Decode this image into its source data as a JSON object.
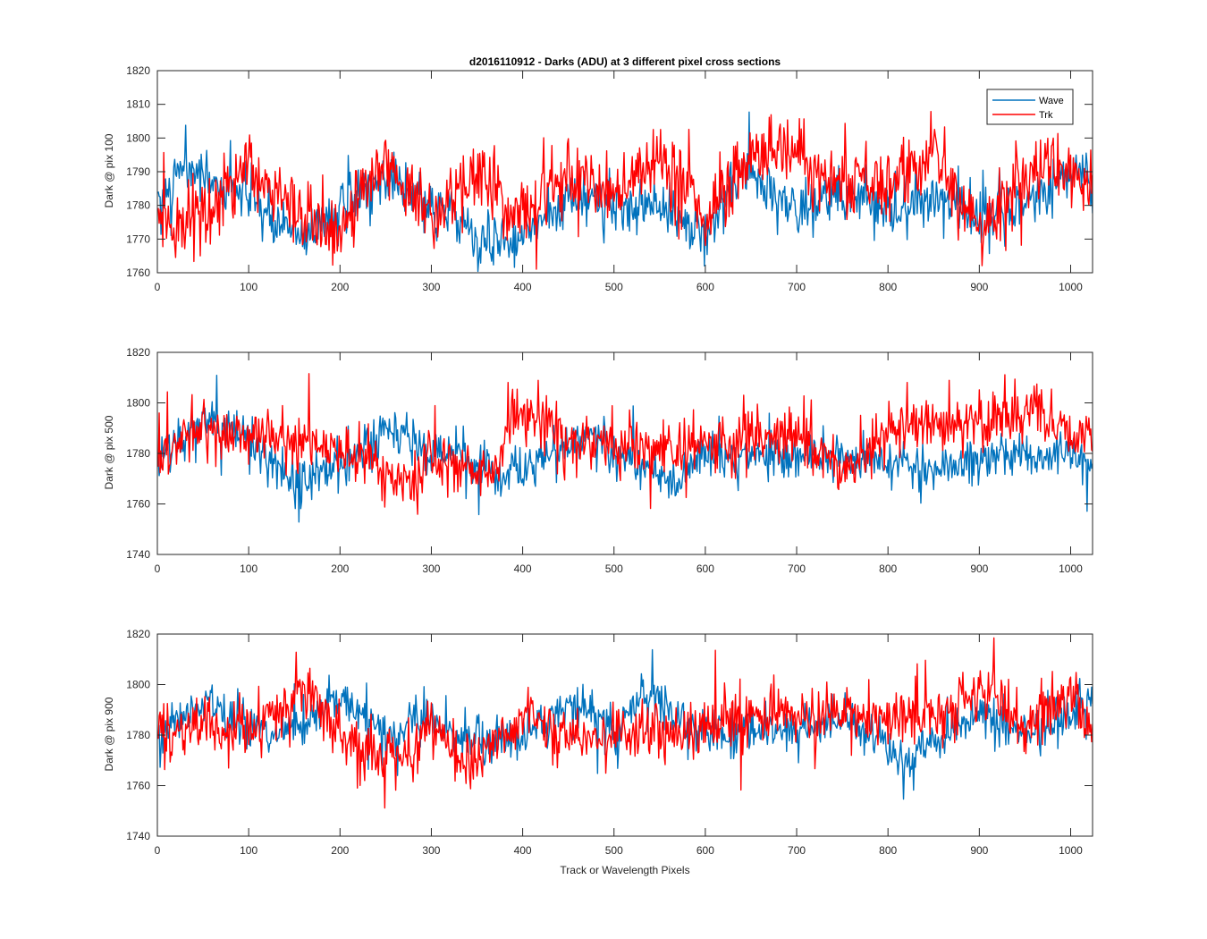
{
  "figure": {
    "title": "d2016110912 - Darks (ADU) at 3 different pixel cross sections"
  },
  "colors": {
    "wave": "#0072BD",
    "trk": "#FF0000",
    "axes": "#262626"
  },
  "legend": {
    "entries": [
      "Wave",
      "Trk"
    ],
    "placement": "top-right of first panel"
  },
  "chart_data": [
    {
      "type": "line",
      "title": "d2016110912 - Darks (ADU) at 3 different pixel cross sections",
      "xlabel": "",
      "ylabel": "Dark @ pix 100",
      "xlim": [
        0,
        1024
      ],
      "ylim": [
        1760,
        1820
      ],
      "xticks": [
        0,
        100,
        200,
        300,
        400,
        500,
        600,
        700,
        800,
        900,
        1000
      ],
      "yticks": [
        1760,
        1770,
        1780,
        1790,
        1800,
        1810,
        1820
      ],
      "grid": false,
      "series": [
        {
          "name": "Wave",
          "color": "#0072BD",
          "x_range": [
            1,
            1024
          ],
          "mean": 1780,
          "noise_amplitude": 7,
          "x": [
            0,
            30,
            100,
            160,
            200,
            250,
            300,
            350,
            390,
            450,
            500,
            550,
            600,
            640,
            700,
            750,
            800,
            850,
            900,
            950,
            1000,
            1024
          ],
          "y": [
            1780,
            1800,
            1781,
            1762,
            1777,
            1795,
            1779,
            1763,
            1760,
            1784,
            1782,
            1777,
            1762,
            1799,
            1778,
            1788,
            1777,
            1782,
            1775,
            1779,
            1800,
            1790
          ]
        },
        {
          "name": "Trk",
          "color": "#FF0000",
          "x_range": [
            1,
            1024
          ],
          "mean": 1782,
          "noise_amplitude": 9,
          "x": [
            0,
            30,
            100,
            160,
            200,
            250,
            300,
            350,
            390,
            450,
            500,
            550,
            600,
            655,
            700,
            750,
            800,
            850,
            900,
            950,
            1000,
            1024
          ],
          "y": [
            1775,
            1763,
            1800,
            1770,
            1762,
            1800,
            1774,
            1792,
            1775,
            1793,
            1784,
            1806,
            1770,
            1813,
            1806,
            1790,
            1788,
            1806,
            1763,
            1794,
            1798,
            1790
          ]
        }
      ]
    },
    {
      "type": "line",
      "title": "",
      "xlabel": "",
      "ylabel": "Dark @ pix 500",
      "xlim": [
        0,
        1024
      ],
      "ylim": [
        1740,
        1820
      ],
      "xticks": [
        0,
        100,
        200,
        300,
        400,
        500,
        600,
        700,
        800,
        900,
        1000
      ],
      "yticks": [
        1740,
        1760,
        1780,
        1800,
        1820
      ],
      "grid": false,
      "series": [
        {
          "name": "Wave",
          "color": "#0072BD",
          "x_range": [
            1,
            1024
          ],
          "mean": 1781,
          "noise_amplitude": 8,
          "x": [
            0,
            50,
            80,
            155,
            200,
            260,
            300,
            350,
            390,
            470,
            500,
            568,
            600,
            700,
            800,
            860,
            900,
            950,
            1000,
            1024
          ],
          "y": [
            1775,
            1801,
            1797,
            1757,
            1772,
            1796,
            1778,
            1771,
            1763,
            1795,
            1780,
            1758,
            1778,
            1778,
            1773,
            1766,
            1777,
            1775,
            1780,
            1768
          ]
        },
        {
          "name": "Trk",
          "color": "#FF0000",
          "x_range": [
            1,
            1024
          ],
          "mean": 1783,
          "noise_amplitude": 10,
          "x": [
            0,
            50,
            100,
            200,
            283,
            300,
            365,
            390,
            450,
            500,
            600,
            700,
            752,
            800,
            900,
            963,
            1000,
            1024
          ],
          "y": [
            1775,
            1795,
            1790,
            1780,
            1757,
            1780,
            1758,
            1811,
            1790,
            1780,
            1784,
            1790,
            1761,
            1795,
            1800,
            1811,
            1788,
            1792
          ]
        }
      ]
    },
    {
      "type": "line",
      "title": "",
      "xlabel": "Track or Wavelength Pixels",
      "ylabel": "Dark @ pix 900",
      "xlim": [
        0,
        1024
      ],
      "ylim": [
        1740,
        1820
      ],
      "xticks": [
        0,
        100,
        200,
        300,
        400,
        500,
        600,
        700,
        800,
        900,
        1000
      ],
      "yticks": [
        1740,
        1760,
        1780,
        1800,
        1820
      ],
      "grid": false,
      "series": [
        {
          "name": "Wave",
          "color": "#0072BD",
          "x_range": [
            1,
            1024
          ],
          "mean": 1782,
          "noise_amplitude": 8,
          "x": [
            0,
            55,
            100,
            150,
            190,
            250,
            300,
            350,
            400,
            455,
            500,
            530,
            600,
            700,
            760,
            820,
            860,
            900,
            950,
            1000,
            1024
          ],
          "y": [
            1782,
            1802,
            1780,
            1779,
            1806,
            1776,
            1791,
            1773,
            1776,
            1805,
            1778,
            1810,
            1779,
            1782,
            1790,
            1758,
            1776,
            1795,
            1780,
            1790,
            1806
          ]
        },
        {
          "name": "Trk",
          "color": "#FF0000",
          "x_range": [
            1,
            1024
          ],
          "mean": 1782,
          "noise_amplitude": 10,
          "x": [
            0,
            50,
            100,
            160,
            200,
            280,
            300,
            335,
            400,
            450,
            500,
            600,
            700,
            800,
            850,
            897,
            950,
            1000,
            1024
          ],
          "y": [
            1782,
            1785,
            1780,
            1808,
            1775,
            1760,
            1790,
            1758,
            1790,
            1780,
            1777,
            1786,
            1795,
            1790,
            1788,
            1813,
            1785,
            1810,
            1780
          ]
        }
      ]
    }
  ]
}
